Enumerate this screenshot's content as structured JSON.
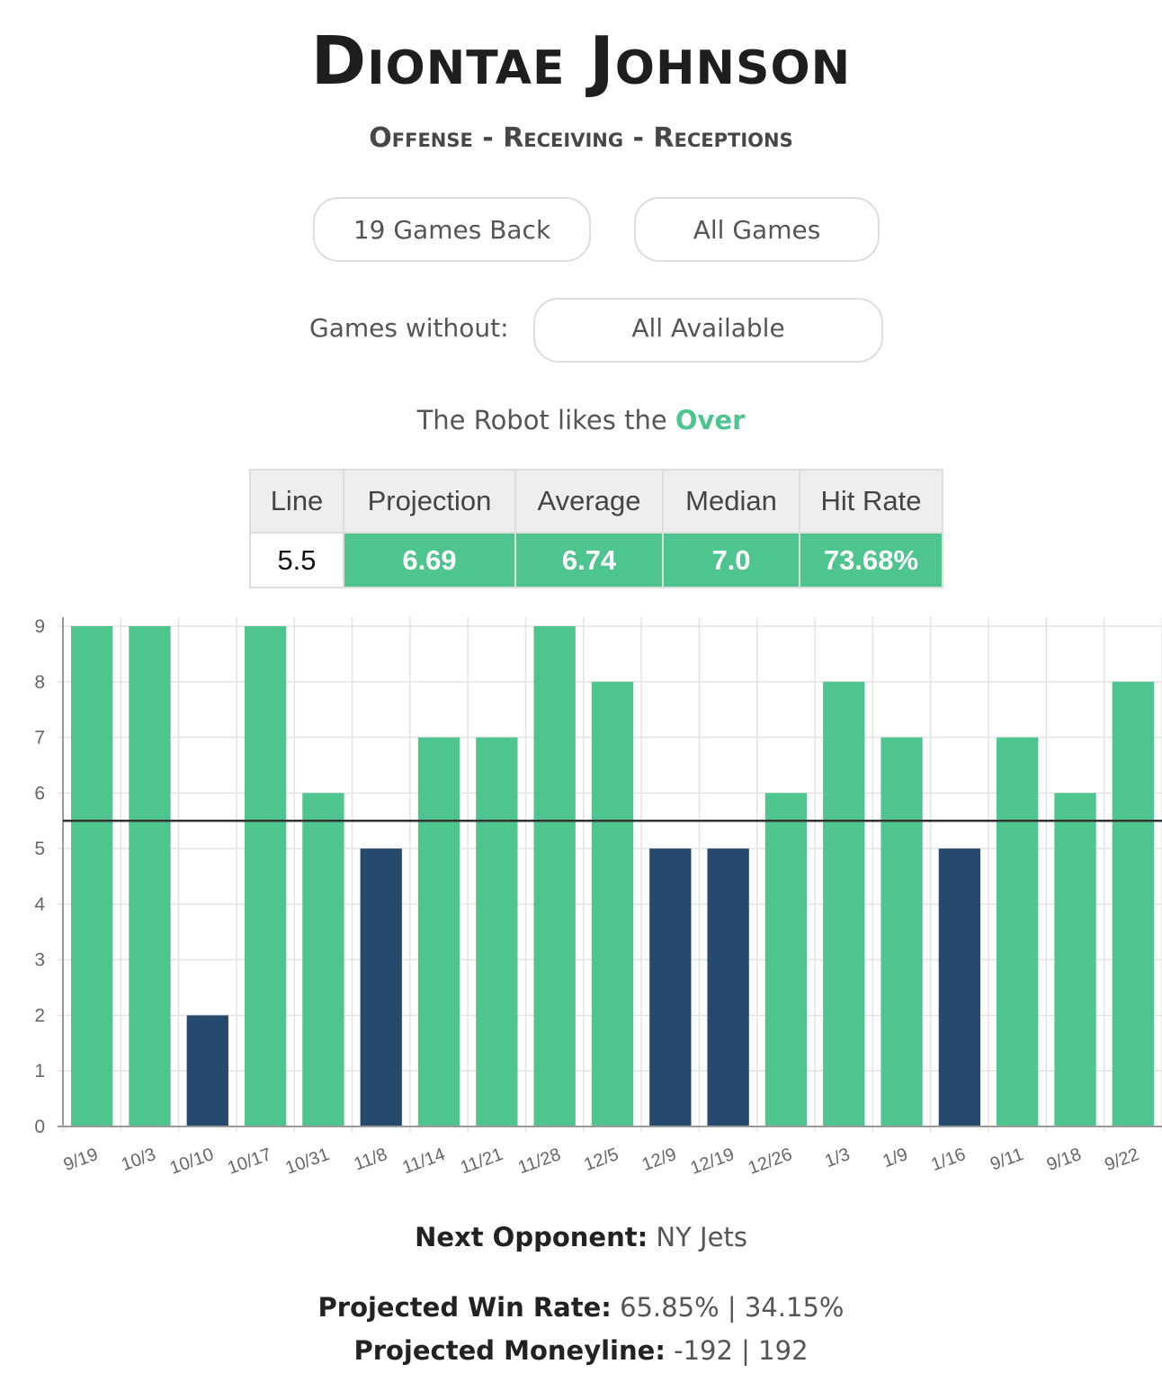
{
  "header": {
    "player_name": "Diontae Johnson",
    "subtitle": "Offense - Receiving - Receptions"
  },
  "filters": {
    "games_back_label": "19 Games Back",
    "game_type_label": "All Games",
    "games_without_label": "Games without:",
    "games_without_value": "All Available"
  },
  "robot": {
    "prefix": "The Robot likes the",
    "pick": "Over",
    "pick_color": "#4ec48e"
  },
  "stats": {
    "headers": [
      "Line",
      "Projection",
      "Average",
      "Median",
      "Hit Rate"
    ],
    "values": [
      "5.5",
      "6.69",
      "6.74",
      "7.0",
      "73.68%"
    ]
  },
  "chart_data": {
    "type": "bar",
    "categories": [
      "9/19",
      "10/3",
      "10/10",
      "10/17",
      "10/31",
      "11/8",
      "11/14",
      "11/21",
      "11/28",
      "12/5",
      "12/9",
      "12/19",
      "12/26",
      "1/3",
      "1/9",
      "1/16",
      "9/11",
      "9/18",
      "9/22"
    ],
    "values": [
      9,
      9,
      2,
      9,
      6,
      5,
      7,
      7,
      9,
      8,
      5,
      5,
      6,
      8,
      7,
      5,
      7,
      6,
      8
    ],
    "line": 5.5,
    "ylim": [
      0,
      9
    ],
    "yticks": [
      "0",
      "1",
      "2",
      "3",
      "4",
      "5",
      "6",
      "7",
      "8",
      "9"
    ],
    "over_color": "#4ec48e",
    "under_color": "#264a6e",
    "grid": true
  },
  "footer": {
    "next_opponent_label": "Next Opponent:",
    "next_opponent": "NY Jets",
    "win_rate_label": "Projected Win Rate:",
    "win_rate_values": "65.85% | 34.15%",
    "moneyline_label": "Projected Moneyline:",
    "moneyline_values": "-192 | 192"
  }
}
